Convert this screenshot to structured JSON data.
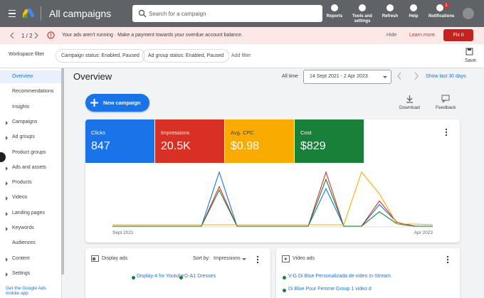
{
  "header": {
    "title": "All campaigns",
    "search_placeholder": "Search for a campaign",
    "tools": [
      "Reports",
      "Tools and settings",
      "Refresh",
      "Help",
      "Notifications"
    ],
    "notification_count": "1"
  },
  "alert": {
    "pager": "1 / 2",
    "message": "Your ads aren't running · Make a payment towards your overdue account balance.",
    "actions": [
      "Hide",
      "Learn more"
    ],
    "primary_action": "Fix it"
  },
  "filters": {
    "label": "Workspace filter",
    "chips": [
      "Campaign status: Enabled, Paused",
      "Ad group status: Enabled, Paused"
    ],
    "add": "Add filter",
    "save": "Save"
  },
  "sidebar": {
    "items": [
      {
        "label": "Overview",
        "expandable": false
      },
      {
        "label": "Recommendations",
        "expandable": false
      },
      {
        "label": "Insights",
        "expandable": false
      },
      {
        "label": "Campaigns",
        "expandable": true
      },
      {
        "label": "Ad groups",
        "expandable": true
      },
      {
        "label": "Product groups",
        "expandable": false
      },
      {
        "label": "Ads and assets",
        "expandable": true
      },
      {
        "label": "Products",
        "expandable": true
      },
      {
        "label": "Videos",
        "expandable": true
      },
      {
        "label": "Landing pages",
        "expandable": true
      },
      {
        "label": "Keywords",
        "expandable": true
      },
      {
        "label": "Audiences",
        "expandable": false
      },
      {
        "label": "Content",
        "expandable": true
      },
      {
        "label": "Settings",
        "expandable": true
      }
    ],
    "app_promo": "Get the Google Ads mobile app"
  },
  "overview": {
    "title": "Overview",
    "range_label": "All time",
    "date_range": "14 Sept 2021 - 2 Apr 2023",
    "quick_range": "Show last 30 days",
    "new_campaign": "New campaign",
    "download": "Download",
    "feedback": "Feedback"
  },
  "metrics": [
    {
      "name": "Clicks",
      "value": "847",
      "color": "#1a73e8"
    },
    {
      "name": "Impressions",
      "value": "20.5K",
      "color": "#d93025"
    },
    {
      "name": "Avg. CPC",
      "value": "$0.98",
      "color": "#f9ab00"
    },
    {
      "name": "Cost",
      "value": "$829",
      "color": "#188038"
    }
  ],
  "chart_data": {
    "type": "line",
    "categories": [
      "Sept 2021",
      null,
      null,
      null,
      null,
      null,
      null,
      null,
      null,
      null,
      null,
      null,
      null,
      null,
      null,
      null,
      null,
      null,
      "Apr 2023"
    ],
    "series": [
      {
        "color": "#1a73e8",
        "values": [
          0,
          0,
          0,
          0,
          0,
          0,
          75,
          0,
          0,
          0,
          0,
          0,
          52,
          0,
          0,
          30,
          5,
          0,
          0
        ]
      },
      {
        "color": "#d93025",
        "values": [
          0,
          0,
          0,
          0,
          0,
          0,
          55,
          0,
          0,
          0,
          0,
          0,
          75,
          0,
          0,
          35,
          5,
          0,
          0
        ]
      },
      {
        "color": "#188038",
        "values": [
          0,
          0,
          0,
          0,
          0,
          0,
          50,
          0,
          0,
          0,
          0,
          0,
          65,
          0,
          0,
          20,
          3,
          0,
          0
        ]
      },
      {
        "color": "#f9ab00",
        "values": [
          2,
          2,
          2,
          2,
          2,
          2,
          2,
          2,
          2,
          2,
          2,
          2,
          2,
          2,
          75,
          45,
          3,
          3,
          2
        ]
      }
    ]
  },
  "display_ads": {
    "title": "Display ads",
    "sort_label": "Sort by:",
    "sort_value": "Impressions",
    "rows": [
      "Display-4 for Youtube",
      "G-A1 Dresses"
    ]
  },
  "video_ads": {
    "title": "Video ads",
    "rows": [
      "V-G Di Blue Personalizada de video In-Stream",
      "Di Blue Pour Femme Group 1 video d"
    ]
  }
}
